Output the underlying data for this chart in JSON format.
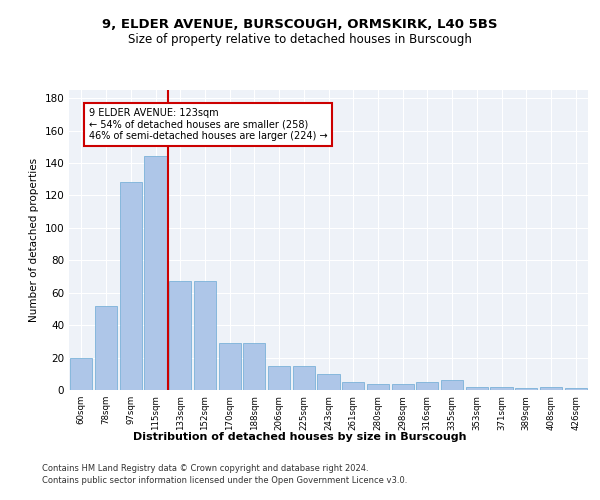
{
  "title1": "9, ELDER AVENUE, BURSCOUGH, ORMSKIRK, L40 5BS",
  "title2": "Size of property relative to detached houses in Burscough",
  "xlabel": "Distribution of detached houses by size in Burscough",
  "ylabel": "Number of detached properties",
  "categories": [
    "60sqm",
    "78sqm",
    "97sqm",
    "115sqm",
    "133sqm",
    "152sqm",
    "170sqm",
    "188sqm",
    "206sqm",
    "225sqm",
    "243sqm",
    "261sqm",
    "280sqm",
    "298sqm",
    "316sqm",
    "335sqm",
    "353sqm",
    "371sqm",
    "389sqm",
    "408sqm",
    "426sqm"
  ],
  "values": [
    20,
    52,
    128,
    144,
    67,
    67,
    29,
    29,
    15,
    15,
    10,
    5,
    4,
    4,
    5,
    6,
    2,
    2,
    1,
    2,
    1
  ],
  "bar_color": "#aec6e8",
  "bar_edge_color": "#6aaad4",
  "vline_color": "#cc0000",
  "annotation_text": "9 ELDER AVENUE: 123sqm\n← 54% of detached houses are smaller (258)\n46% of semi-detached houses are larger (224) →",
  "annotation_box_color": "#ffffff",
  "annotation_border_color": "#cc0000",
  "ylim": [
    0,
    185
  ],
  "yticks": [
    0,
    20,
    40,
    60,
    80,
    100,
    120,
    140,
    160,
    180
  ],
  "footer1": "Contains HM Land Registry data © Crown copyright and database right 2024.",
  "footer2": "Contains public sector information licensed under the Open Government Licence v3.0.",
  "bg_color": "#eef2f8",
  "fig_bg_color": "#ffffff"
}
